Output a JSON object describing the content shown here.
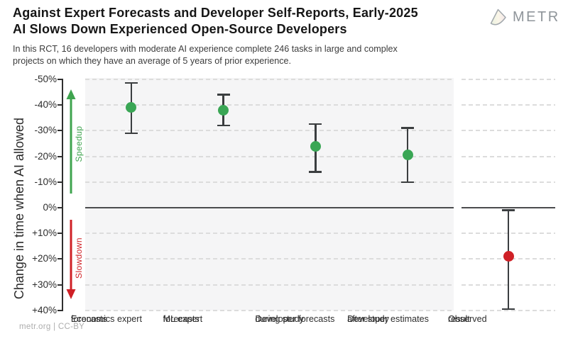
{
  "header": {
    "title_lines": [
      "Against Expert Forecasts and Developer Self-Reports, Early-2025",
      "AI Slows Down Experienced Open-Source Developers"
    ],
    "subtitle_lines": [
      "In this RCT, 16 developers with moderate AI experience complete 246 tasks in large and complex",
      "projects on which they have an average of 5 years of prior experience."
    ],
    "logo_text": "METR"
  },
  "footer": {
    "credit": "metr.org | CC-BY"
  },
  "chart_data": {
    "type": "scatter",
    "title": "Against Expert Forecasts and Developer Self-Reports, Early-2025 AI Slows Down Experienced Open-Source Developers",
    "subtitle": "In this RCT, 16 developers with moderate AI experience complete 246 tasks in large and complex projects on which they have an average of 5 years of prior experience.",
    "ylabel": "Change in time when AI allowed",
    "xlabel": "",
    "ylim": [
      -50.5,
      40.5
    ],
    "y_axis_inverted_note": "negative (speedup) plotted above zero line, positive (slowdown) below",
    "grid": "horizontal-dashed",
    "legend": "none",
    "y_ticks": [
      {
        "value": -50,
        "label": "-50%"
      },
      {
        "value": -40,
        "label": "-40%"
      },
      {
        "value": -30,
        "label": "-30%"
      },
      {
        "value": -20,
        "label": "-20%"
      },
      {
        "value": -10,
        "label": "-10%"
      },
      {
        "value": 0,
        "label": "0%"
      },
      {
        "value": 10,
        "label": "+10%"
      },
      {
        "value": 20,
        "label": "+20%"
      },
      {
        "value": 30,
        "label": "+30%"
      },
      {
        "value": 40,
        "label": "+40%"
      }
    ],
    "annotations": [
      {
        "text": "Speedup",
        "direction": "up",
        "color": "#3fa44f"
      },
      {
        "text": "Slowdown",
        "direction": "down",
        "color": "#cf2026"
      }
    ],
    "colors": {
      "forecast_marker": "#3aa655",
      "observed_marker": "#cf2026",
      "error_bar": "#3b3e40",
      "zero_line": "#4b4c4e",
      "panel_background": "#f5f5f6",
      "gridline": "#dcdcdc"
    },
    "series": [
      {
        "name": "Forecasts and estimates",
        "panel": "main",
        "marker_color": "#3aa655",
        "points": [
          {
            "label_lines": [
              "Economics expert",
              "forecasts"
            ],
            "value": -39,
            "ci": [
              -48.5,
              -29
            ]
          },
          {
            "label_lines": [
              "ML expert",
              "forecasts"
            ],
            "value": -38,
            "ci": [
              -44,
              -32
            ]
          },
          {
            "label_lines": [
              "Developer forecasts",
              "during study"
            ],
            "value": -24,
            "ci": [
              -32.5,
              -14
            ]
          },
          {
            "label_lines": [
              "Developer estimates",
              "after study"
            ],
            "value": -20.5,
            "ci": [
              -31,
              -10
            ]
          }
        ]
      },
      {
        "name": "Observed result",
        "panel": "right",
        "marker_color": "#cf2026",
        "points": [
          {
            "label_lines": [
              "Observed",
              "result"
            ],
            "value": 19,
            "ci": [
              1,
              39.5
            ]
          }
        ]
      }
    ]
  }
}
